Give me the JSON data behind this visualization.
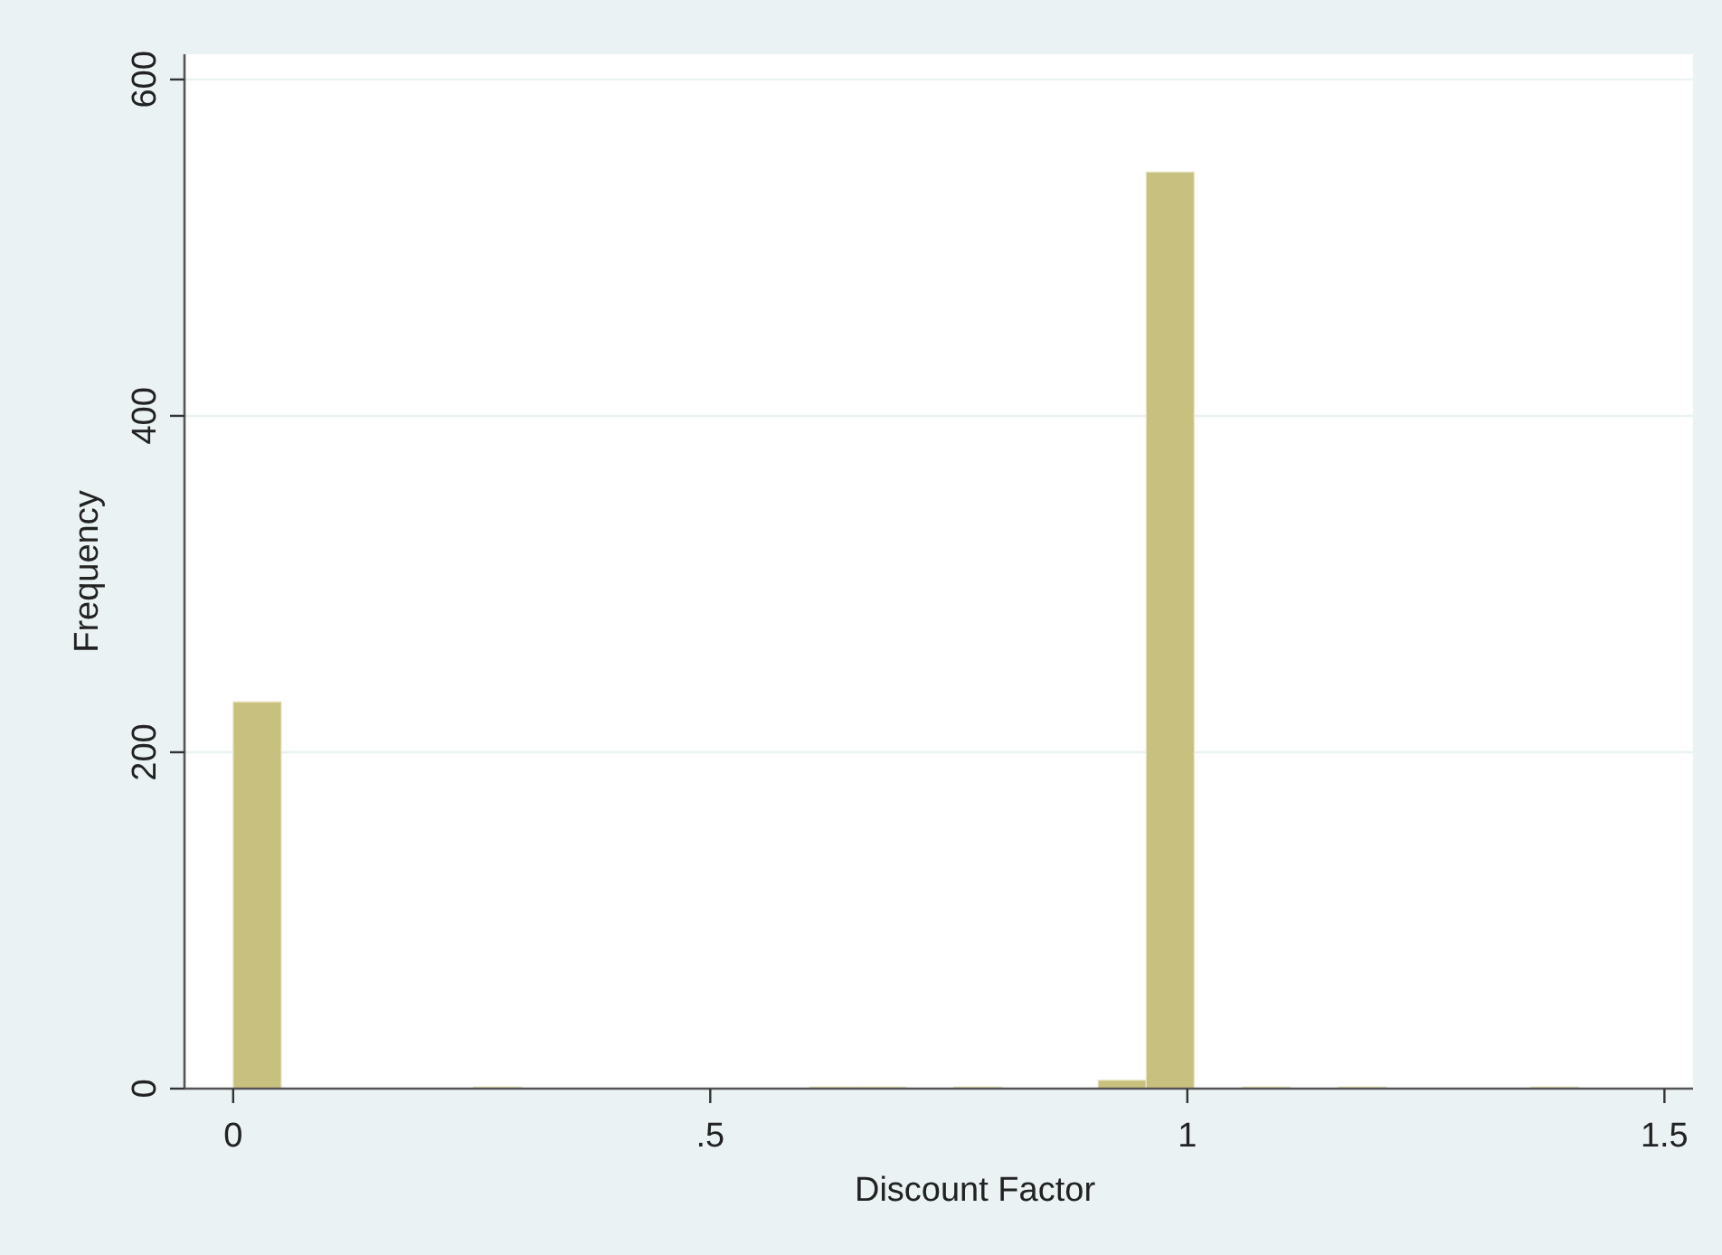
{
  "chart_data": {
    "type": "histogram",
    "xlabel": "Discount Factor",
    "ylabel": "Frequency",
    "bins": [
      0,
      0.0504,
      0.1007,
      0.1511,
      0.2014,
      0.2518,
      0.3021,
      0.3525,
      0.4029,
      0.4532,
      0.5036,
      0.5539,
      0.6043,
      0.6546,
      0.705,
      0.7554,
      0.8057,
      0.8561,
      0.9064,
      0.9568,
      1.0071,
      1.0575,
      1.1079,
      1.1582,
      1.2086,
      1.2589,
      1.3093,
      1.3596,
      1.41
    ],
    "values": [
      230,
      0,
      0,
      0,
      0,
      1,
      0,
      0,
      0,
      0,
      0,
      0,
      1,
      1,
      0,
      1,
      0,
      0,
      5,
      545,
      0,
      1,
      0,
      1,
      0,
      0,
      0,
      1
    ],
    "color": "#c8c07e",
    "xlim": [
      -0.051,
      1.53
    ],
    "xticks": [
      0,
      {
        "value": 0.5,
        "label": ".5"
      },
      1,
      1.5
    ],
    "ylim": [
      0,
      615
    ],
    "yticks": [
      0,
      200,
      400,
      600
    ],
    "grid": "y"
  }
}
